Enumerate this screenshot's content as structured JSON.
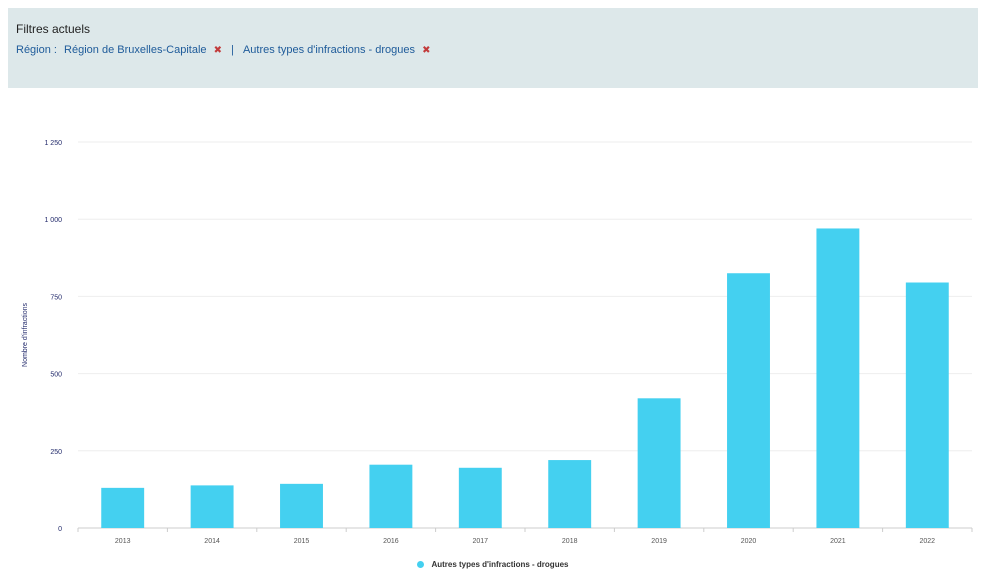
{
  "filters": {
    "title": "Filtres actuels",
    "region_label": "Région :",
    "region_value": "Région de Bruxelles-Capitale",
    "separator": "|",
    "offense_value": "Autres types d'infractions - drogues"
  },
  "colors": {
    "bar": "#44d0f0",
    "axis_text": "#222a6b",
    "grid": "#eeeeee",
    "filter_bg": "#dde8ea"
  },
  "chart_data": {
    "type": "bar",
    "categories": [
      "2013",
      "2014",
      "2015",
      "2016",
      "2017",
      "2018",
      "2019",
      "2020",
      "2021",
      "2022"
    ],
    "series": [
      {
        "name": "Autres types d'infractions - drogues",
        "values": [
          130,
          138,
          143,
          205,
          195,
          220,
          420,
          825,
          970,
          795
        ]
      }
    ],
    "ylabel": "Nombre d'infractions",
    "ylim": [
      0,
      1250
    ],
    "yticks": [
      0,
      250,
      500,
      750,
      1000,
      1250
    ],
    "ytick_labels": [
      "0",
      "250",
      "500",
      "750",
      "1 000",
      "1 250"
    ],
    "grid": true,
    "legend": "bottom-center"
  }
}
